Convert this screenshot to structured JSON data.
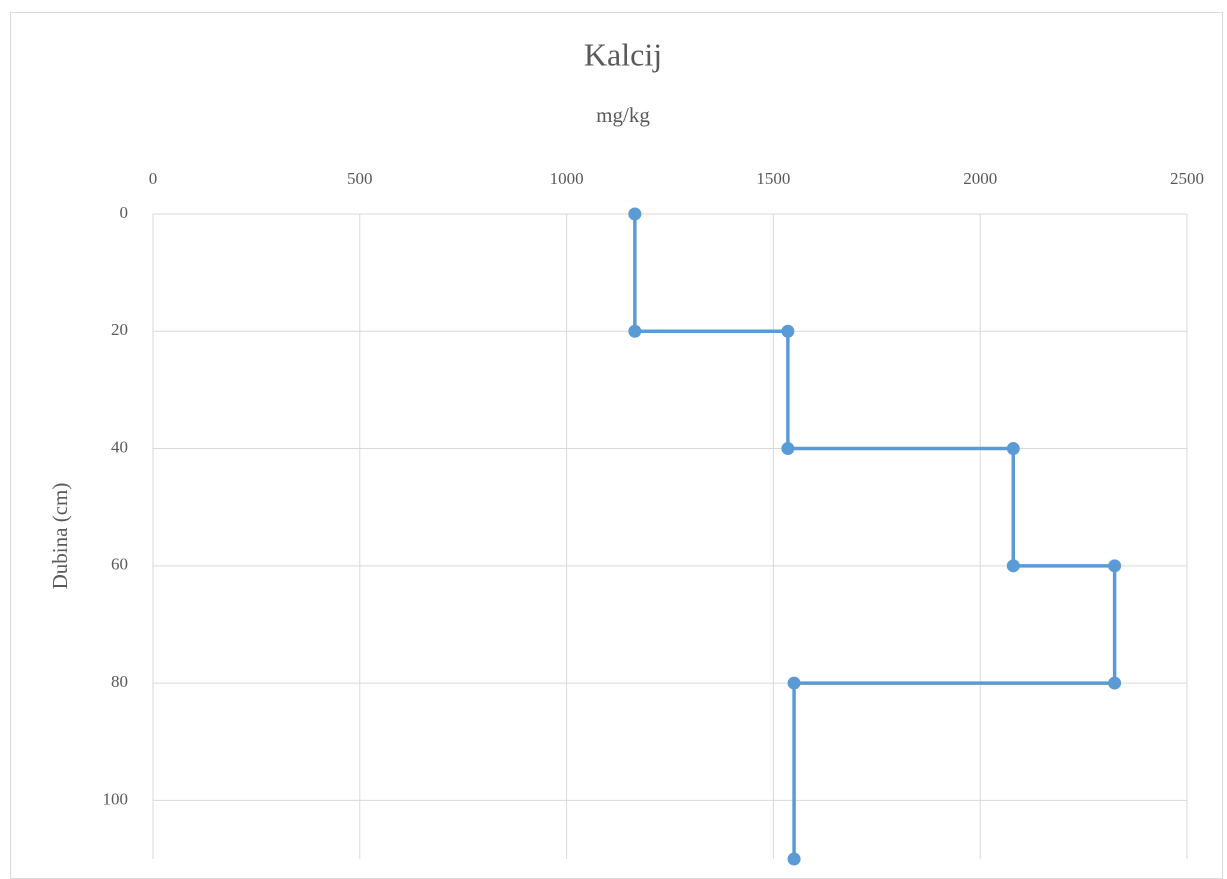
{
  "chart_data": {
    "type": "line",
    "title": "Kalcij",
    "x_label": "mg/kg",
    "y_label": "Dubina (cm)",
    "x": [
      1165,
      1165,
      1535,
      1535,
      2080,
      2080,
      2325,
      2325,
      1550,
      1550
    ],
    "values": [
      0,
      20,
      20,
      40,
      40,
      60,
      60,
      80,
      80,
      110
    ],
    "color": "#5b9bd5",
    "xlim": [
      0,
      2500
    ],
    "xticks": [
      0,
      500,
      1000,
      1500,
      2000,
      2500
    ],
    "ylim": [
      0,
      110
    ],
    "yticks": [
      0,
      20,
      40,
      60,
      80,
      100
    ],
    "y_inverted": true,
    "x_axis_position": "top",
    "grid": true
  }
}
